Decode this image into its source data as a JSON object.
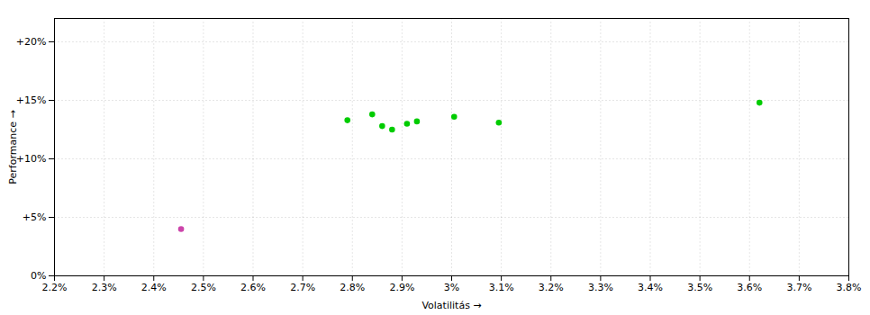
{
  "chart_data": {
    "type": "scatter",
    "xlabel": "Volatilitás",
    "ylabel": "Performance",
    "xlim": [
      0.022,
      0.038
    ],
    "ylim": [
      0.0,
      0.22
    ],
    "xticks": [
      {
        "value": 0.022,
        "label": "2.2%"
      },
      {
        "value": 0.023,
        "label": "2.3%"
      },
      {
        "value": 0.024,
        "label": "2.4%"
      },
      {
        "value": 0.025,
        "label": "2.5%"
      },
      {
        "value": 0.026,
        "label": "2.6%"
      },
      {
        "value": 0.027,
        "label": "2.7%"
      },
      {
        "value": 0.028,
        "label": "2.8%"
      },
      {
        "value": 0.029,
        "label": "2.9%"
      },
      {
        "value": 0.03,
        "label": "3%"
      },
      {
        "value": 0.031,
        "label": "3.1%"
      },
      {
        "value": 0.032,
        "label": "3.2%"
      },
      {
        "value": 0.033,
        "label": "3.3%"
      },
      {
        "value": 0.034,
        "label": "3.4%"
      },
      {
        "value": 0.035,
        "label": "3.5%"
      },
      {
        "value": 0.036,
        "label": "3.6%"
      },
      {
        "value": 0.037,
        "label": "3.7%"
      },
      {
        "value": 0.038,
        "label": "3.8%"
      }
    ],
    "yticks": [
      {
        "value": 0.0,
        "label": "0%"
      },
      {
        "value": 0.05,
        "label": "+5%"
      },
      {
        "value": 0.1,
        "label": "+10%"
      },
      {
        "value": 0.15,
        "label": "+15%"
      },
      {
        "value": 0.2,
        "label": "+20%"
      }
    ],
    "grid": true,
    "series": [
      {
        "color": "#00cc00",
        "x": [
          0.0279,
          0.0284,
          0.0286,
          0.0288,
          0.0291,
          0.0293,
          0.03005,
          0.03095,
          0.0362
        ],
        "values": [
          0.133,
          0.138,
          0.128,
          0.125,
          0.13,
          0.132,
          0.136,
          0.131,
          0.148
        ]
      },
      {
        "color": "#cc44aa",
        "x": [
          0.02455
        ],
        "values": [
          0.04
        ]
      }
    ]
  }
}
